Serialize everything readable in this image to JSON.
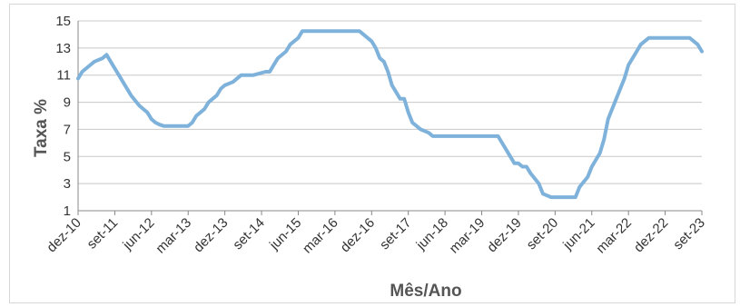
{
  "chart_data": {
    "type": "line",
    "xlabel": "Mês/Ano",
    "ylabel": "Taxa %",
    "ylim": [
      1,
      15
    ],
    "y_ticks": [
      1,
      3,
      5,
      7,
      9,
      11,
      13,
      15
    ],
    "x_tick_labels": [
      "dez-10",
      "set-11",
      "jun-12",
      "mar-13",
      "dez-13",
      "set-14",
      "jun-15",
      "mar-16",
      "dez-16",
      "set-17",
      "jun-18",
      "mar-19",
      "dez-19",
      "set-20",
      "jun-21",
      "mar-22",
      "dez-22",
      "set-23"
    ],
    "grid": "horizontal",
    "line_color": "#7fb2db",
    "series": [
      {
        "x": [
          "dez-10",
          "jan-11",
          "mar-11",
          "abr-11",
          "jun-11",
          "jul-11",
          "ago-11",
          "set-11",
          "out-11",
          "nov-11",
          "dez-11",
          "jan-12",
          "mar-12",
          "abr-12",
          "mai-12",
          "jun-12",
          "jul-12",
          "ago-12",
          "set-12",
          "out-12",
          "nov-12",
          "mar-13",
          "abr-13",
          "mai-13",
          "jun-13",
          "jul-13",
          "ago-13",
          "set-13",
          "out-13",
          "nov-13",
          "dez-13",
          "fev-14",
          "abr-14",
          "jul-14",
          "out-14",
          "nov-14",
          "dez-14",
          "jan-15",
          "mar-15",
          "abr-15",
          "jun-15",
          "jul-15",
          "ago-16",
          "set-16",
          "out-16",
          "nov-16",
          "dez-16",
          "jan-17",
          "fev-17",
          "mar-17",
          "abr-17",
          "mai-17",
          "jul-17",
          "ago-17",
          "set-17",
          "out-17",
          "nov-17",
          "dez-17",
          "fev-18",
          "mar-18",
          "jul-19",
          "ago-19",
          "set-19",
          "out-19",
          "nov-19",
          "dez-19",
          "jan-20",
          "fev-20",
          "mar-20",
          "mai-20",
          "jun-20",
          "ago-20",
          "fev-21",
          "mar-21",
          "mai-21",
          "jun-21",
          "ago-21",
          "set-21",
          "out-21",
          "dez-21",
          "fev-22",
          "mar-22",
          "mai-22",
          "jun-22",
          "ago-22",
          "mai-23",
          "jun-23",
          "ago-23",
          "set-23"
        ],
        "values": [
          10.75,
          11.25,
          11.75,
          12.0,
          12.25,
          12.5,
          12.0,
          11.5,
          11.0,
          10.5,
          10.0,
          9.5,
          8.75,
          8.5,
          8.25,
          7.75,
          7.5,
          7.35,
          7.25,
          7.25,
          7.25,
          7.25,
          7.5,
          8.0,
          8.25,
          8.5,
          9.0,
          9.25,
          9.5,
          10.0,
          10.25,
          10.5,
          11.0,
          11.0,
          11.25,
          11.25,
          11.75,
          12.25,
          12.75,
          13.25,
          13.75,
          14.25,
          14.25,
          14.25,
          14.0,
          13.75,
          13.5,
          13.0,
          12.25,
          12.0,
          11.25,
          10.25,
          9.25,
          9.25,
          8.25,
          7.5,
          7.25,
          7.0,
          6.75,
          6.5,
          6.5,
          6.0,
          5.5,
          5.0,
          4.5,
          4.5,
          4.25,
          4.25,
          3.75,
          3.0,
          2.25,
          2.0,
          2.0,
          2.75,
          3.5,
          4.25,
          5.25,
          6.25,
          7.75,
          9.25,
          10.75,
          11.75,
          12.75,
          13.25,
          13.75,
          13.75,
          13.75,
          13.25,
          12.75
        ]
      }
    ]
  }
}
